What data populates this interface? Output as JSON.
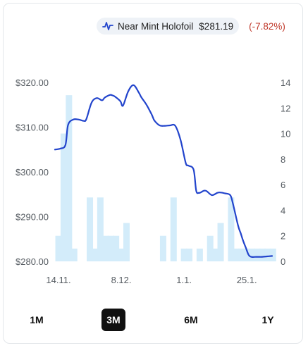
{
  "legend": {
    "series_name": "Near Mint Holofoil",
    "price": "$281.19",
    "change": "(-7.82%)",
    "icon": "line-chart-icon",
    "line_color": "#2244cc",
    "bar_color": "#d3ecfa",
    "change_color": "#c0392b"
  },
  "ranges": [
    {
      "label": "1M",
      "active": false
    },
    {
      "label": "3M",
      "active": true
    },
    {
      "label": "6M",
      "active": false
    },
    {
      "label": "1Y",
      "active": false
    }
  ],
  "chart_data": {
    "type": "line",
    "title": "",
    "grid": false,
    "legend_position": "top-right",
    "x_ticks": [
      "14.11.",
      "8.12.",
      "1.1.",
      "25.1."
    ],
    "y_left": {
      "ticks": [
        "$280.00",
        "$290.00",
        "$300.00",
        "$310.00",
        "$320.00"
      ],
      "range": [
        280,
        320
      ]
    },
    "y_right": {
      "ticks": [
        "0",
        "2",
        "4",
        "6",
        "8",
        "10",
        "12",
        "14"
      ],
      "range": [
        0,
        14
      ]
    },
    "tick_day_index": [
      0,
      24,
      48,
      72
    ],
    "day_span": [
      0,
      83
    ],
    "series": [
      {
        "name": "Near Mint Holofoil",
        "kind": "line",
        "axis": "left",
        "x_day": [
          0,
          2,
          4,
          5,
          7,
          9,
          11,
          12,
          14,
          16,
          18,
          19,
          21,
          22,
          23,
          25,
          26,
          28,
          30,
          32,
          33,
          35,
          37,
          38,
          40,
          42,
          44,
          46,
          48,
          50,
          51,
          53,
          54,
          55,
          56,
          57,
          58,
          60,
          62,
          63,
          65,
          67,
          68,
          70,
          71,
          72,
          73,
          74,
          75,
          77,
          78,
          79,
          81,
          83
        ],
        "y": [
          305.0,
          305.2,
          306.0,
          310.5,
          311.7,
          311.7,
          311.4,
          311.8,
          315.5,
          316.5,
          316.0,
          316.6,
          317.2,
          317.1,
          316.8,
          315.8,
          314.8,
          318.0,
          319.4,
          317.8,
          316.7,
          315.0,
          312.8,
          311.5,
          310.4,
          310.3,
          310.4,
          310.3,
          307.2,
          302.0,
          301.4,
          300.5,
          295.8,
          295.3,
          295.5,
          295.8,
          295.7,
          294.8,
          295.3,
          295.4,
          295.2,
          294.8,
          293.0,
          288.0,
          286.3,
          284.5,
          283.0,
          281.5,
          281.0,
          281.0,
          281.0,
          281.0,
          281.1,
          281.19
        ]
      },
      {
        "name": "Volume",
        "kind": "bar",
        "axis": "right",
        "x_day": [
          0,
          2,
          4,
          6,
          12,
          14,
          16,
          18,
          20,
          22,
          24,
          26,
          40,
          44,
          48,
          50,
          54,
          58,
          60,
          62,
          66,
          68,
          70,
          72,
          74,
          76,
          78,
          80,
          82
        ],
        "values": [
          2,
          10,
          13,
          1,
          5,
          1,
          5,
          2,
          2,
          2,
          1,
          3,
          2,
          5,
          1,
          1,
          1,
          2,
          1,
          3,
          5,
          1,
          1,
          1,
          1,
          1,
          1,
          1,
          1
        ]
      }
    ]
  }
}
